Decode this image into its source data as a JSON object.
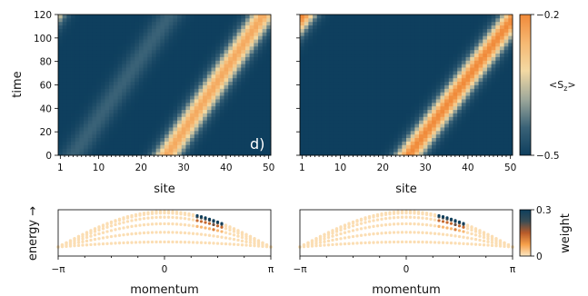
{
  "chart_data": [
    {
      "type": "heatmap",
      "panel": "top-left",
      "annotation": "d)",
      "xlabel": "site",
      "ylabel": "time",
      "xlim": [
        1,
        50
      ],
      "ylim": [
        0,
        120
      ],
      "xticks": [
        "1",
        "10",
        "20",
        "30",
        "40",
        "50"
      ],
      "yticks": [
        "0",
        "20",
        "40",
        "60",
        "80",
        "100",
        "120"
      ],
      "background_value": -0.5,
      "bands": [
        {
          "description": "main wavepacket",
          "start_site": 26,
          "speed_sites_per_time": 0.19,
          "peak": -0.24
        },
        {
          "description": "main wavepacket (periodic image)",
          "start_site": -24,
          "speed_sites_per_time": 0.19,
          "peak": -0.24
        },
        {
          "description": "faint secondary wavepacket",
          "start_site": 4,
          "speed_sites_per_time": 0.19,
          "peak": -0.44
        }
      ]
    },
    {
      "type": "heatmap",
      "panel": "top-right",
      "xlabel": "site",
      "xlim": [
        1,
        50
      ],
      "ylim": [
        0,
        120
      ],
      "xticks": [
        "1",
        "10",
        "20",
        "30",
        "40",
        "50"
      ],
      "background_value": -0.5,
      "bands": [
        {
          "description": "main wavepacket",
          "start_site": 26,
          "speed_sites_per_time": 0.21,
          "peak": -0.2
        },
        {
          "description": "main wavepacket (periodic image)",
          "start_site": -24,
          "speed_sites_per_time": 0.21,
          "peak": -0.2
        }
      ]
    },
    {
      "type": "scatter",
      "panel": "bottom-left",
      "xlabel": "momentum",
      "ylabel": "energy →",
      "xlim": [
        "−π",
        "π"
      ],
      "xticks": [
        "−π",
        "0",
        "π"
      ],
      "continuum": "two-particle continuum of dots, weight near 0",
      "weighted_points_note": "dark (high weight) points cluster around momentum ≈ 0.35π–0.5π near the lower edge"
    },
    {
      "type": "scatter",
      "panel": "bottom-right",
      "xlabel": "momentum",
      "xlim": [
        "−π",
        "π"
      ],
      "xticks": [
        "−π",
        "0",
        "π"
      ],
      "continuum": "two-particle continuum of dots, weight near 0",
      "weighted_points_note": "dark (high weight) points around momentum ≈ 0.35π–0.5π near the lower edge"
    }
  ],
  "colorbar_sz": {
    "label": "<S",
    "label_sub": "z",
    "label_end": ">",
    "min": -0.5,
    "max": -0.2,
    "ticks": [
      "−0.2",
      "−0.5"
    ],
    "colors": [
      "#0e3f5e",
      "#3a6277",
      "#9fa99b",
      "#f3d9a3",
      "#f6b872",
      "#f08a3a"
    ]
  },
  "colorbar_weight": {
    "label": "weight",
    "min": 0,
    "max": 0.3,
    "ticks": [
      "0.3",
      "0"
    ],
    "colors": [
      "#fce8c4",
      "#f6a04a",
      "#b85b2a",
      "#3a4d55",
      "#0e3f5e"
    ]
  }
}
